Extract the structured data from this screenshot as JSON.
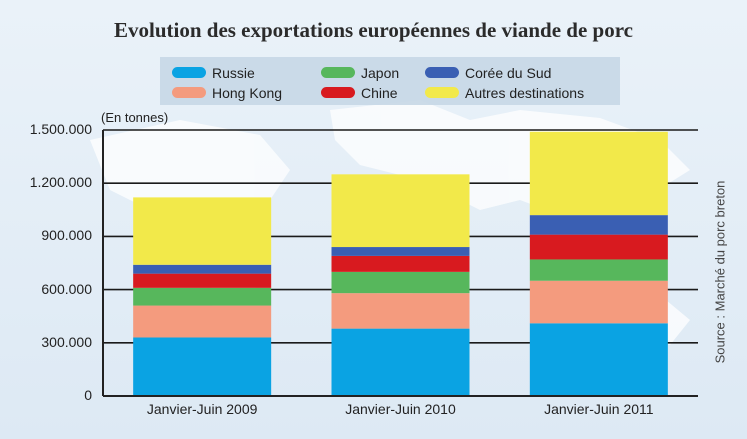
{
  "chart_data": {
    "type": "bar",
    "stacked": true,
    "title": "Evolution des exportations européennes de viande de porc",
    "ylabel": "(En tonnes)",
    "source": "Source : Marché du porc breton",
    "categories": [
      "Janvier-Juin 2009",
      "Janvier-Juin 2010",
      "Janvier-Juin 2011"
    ],
    "ylim": [
      0,
      1500000
    ],
    "yticks": [
      0,
      300000,
      600000,
      900000,
      1200000,
      1500000
    ],
    "ytick_labels": [
      "0",
      "300.000",
      "600.000",
      "900.000",
      "1.200.000",
      "1.500.000"
    ],
    "grid": true,
    "legend_position": "top",
    "series": [
      {
        "name": "Russie",
        "color": "#0aa3e3",
        "values": [
          330000,
          380000,
          410000
        ]
      },
      {
        "name": "Hong Kong",
        "color": "#f49b7e",
        "values": [
          180000,
          200000,
          240000
        ]
      },
      {
        "name": "Japon",
        "color": "#57b75c",
        "values": [
          100000,
          120000,
          120000
        ]
      },
      {
        "name": "Chine",
        "color": "#d81a1f",
        "values": [
          80000,
          90000,
          140000
        ]
      },
      {
        "name": "Corée du Sud",
        "color": "#3a5fb3",
        "values": [
          50000,
          50000,
          110000
        ]
      },
      {
        "name": "Autres destinations",
        "color": "#f2e94a",
        "values": [
          380000,
          410000,
          470000
        ]
      }
    ]
  }
}
